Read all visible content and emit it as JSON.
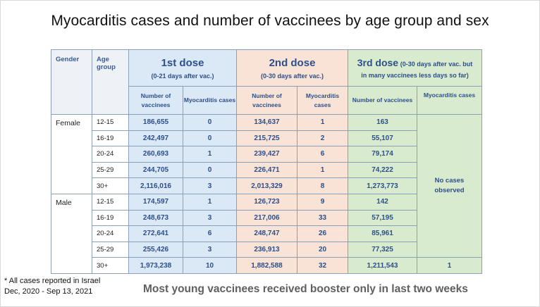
{
  "title": "Myocarditis cases and number of vaccinees by age group and sex",
  "headers": {
    "gender": "Gender",
    "age_group": "Age group",
    "dose1_title": "1st dose",
    "dose1_sub": "(0-21 days after vac.)",
    "dose2_title": "2nd dose",
    "dose2_sub": "(0-30 days after vac.)",
    "dose3_title": "3rd dose",
    "dose3_sub_inline": "(0-30 days after vac. but",
    "dose3_sub_line2": "in many vaccinees less days so far)",
    "num_vaccinees": "Number of vaccinees",
    "myo_cases": "Myocarditis cases",
    "myo_cases_3rd": "Myocarditis cases"
  },
  "genders": {
    "female": "Female",
    "male": "Male"
  },
  "rows": [
    {
      "age": "12-15",
      "d1_vax": "186,655",
      "d1_cases": "0",
      "d2_vax": "134,637",
      "d2_cases": "1",
      "d3_vax": "163"
    },
    {
      "age": "16-19",
      "d1_vax": "242,497",
      "d1_cases": "0",
      "d2_vax": "215,725",
      "d2_cases": "2",
      "d3_vax": "55,107"
    },
    {
      "age": "20-24",
      "d1_vax": "260,693",
      "d1_cases": "1",
      "d2_vax": "239,427",
      "d2_cases": "6",
      "d3_vax": "79,174"
    },
    {
      "age": "25-29",
      "d1_vax": "244,705",
      "d1_cases": "0",
      "d2_vax": "226,471",
      "d2_cases": "1",
      "d3_vax": "74,222"
    },
    {
      "age": "30+",
      "d1_vax": "2,116,016",
      "d1_cases": "3",
      "d2_vax": "2,013,329",
      "d2_cases": "8",
      "d3_vax": "1,273,773"
    },
    {
      "age": "12-15",
      "d1_vax": "174,597",
      "d1_cases": "1",
      "d2_vax": "126,723",
      "d2_cases": "9",
      "d3_vax": "142"
    },
    {
      "age": "16-19",
      "d1_vax": "248,673",
      "d1_cases": "3",
      "d2_vax": "217,006",
      "d2_cases": "33",
      "d3_vax": "57,195"
    },
    {
      "age": "20-24",
      "d1_vax": "272,641",
      "d1_cases": "6",
      "d2_vax": "248,747",
      "d2_cases": "26",
      "d3_vax": "85,961"
    },
    {
      "age": "25-29",
      "d1_vax": "255,426",
      "d1_cases": "3",
      "d2_vax": "236,913",
      "d2_cases": "20",
      "d3_vax": "77,325"
    },
    {
      "age": "30+",
      "d1_vax": "1,973,238",
      "d1_cases": "10",
      "d2_vax": "1,882,588",
      "d2_cases": "32",
      "d3_vax": "1,211,543"
    }
  ],
  "no_cases_line1": "No cases",
  "no_cases_line2": "observed",
  "last_row_3rd_cases": "1",
  "footnote_line1": "* All cases reported in Israel",
  "footnote_line2": "Dec, 2020 - Sep 13, 2021",
  "caption": "Most young vaccinees received booster only in last two weeks",
  "colors": {
    "dose1_bg": "#dbe8f5",
    "dose2_bg": "#f8e3d6",
    "dose3_bg": "#d8ebcf",
    "header_text": "#2d4f8a"
  },
  "chart_data": {
    "type": "table",
    "title": "Myocarditis cases and number of vaccinees by age group and sex",
    "columns": [
      "Gender",
      "Age group",
      "1st dose Number of vaccinees",
      "1st dose Myocarditis cases",
      "2nd dose Number of vaccinees",
      "2nd dose Myocarditis cases",
      "3rd dose Number of vaccinees",
      "3rd dose Myocarditis cases"
    ],
    "data": [
      [
        "Female",
        "12-15",
        186655,
        0,
        134637,
        1,
        163,
        "No cases observed"
      ],
      [
        "Female",
        "16-19",
        242497,
        0,
        215725,
        2,
        55107,
        "No cases observed"
      ],
      [
        "Female",
        "20-24",
        260693,
        1,
        239427,
        6,
        79174,
        "No cases observed"
      ],
      [
        "Female",
        "25-29",
        244705,
        0,
        226471,
        1,
        74222,
        "No cases observed"
      ],
      [
        "Female",
        "30+",
        2116016,
        3,
        2013329,
        8,
        1273773,
        "No cases observed"
      ],
      [
        "Male",
        "12-15",
        174597,
        1,
        126723,
        9,
        142,
        "No cases observed"
      ],
      [
        "Male",
        "16-19",
        248673,
        3,
        217006,
        33,
        57195,
        "No cases observed"
      ],
      [
        "Male",
        "20-24",
        272641,
        6,
        248747,
        26,
        85961,
        "No cases observed"
      ],
      [
        "Male",
        "25-29",
        255426,
        3,
        236913,
        20,
        77325,
        "No cases observed"
      ],
      [
        "Male",
        "30+",
        1973238,
        10,
        1882588,
        32,
        1211543,
        1
      ]
    ]
  }
}
